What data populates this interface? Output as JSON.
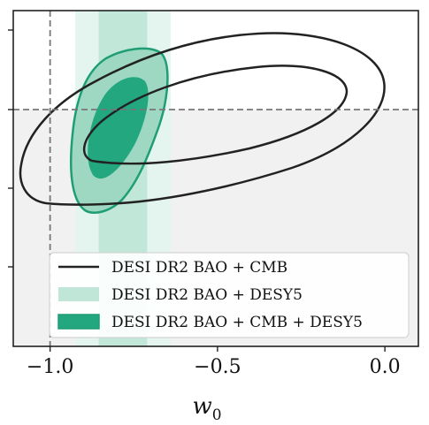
{
  "chart_data": {
    "type": "contour",
    "xlabel": "w",
    "xlabel_sub": "0",
    "ylabel": "",
    "xlim": [
      -1.11,
      0.1
    ],
    "x_ticks": [
      {
        "value": -1.0,
        "label": "−1.0"
      },
      {
        "value": -0.5,
        "label": "−0.5"
      },
      {
        "value": 0.0,
        "label": "0.0"
      }
    ],
    "y_tick_count": 4,
    "reference_lines": {
      "vertical_w0": -1.0,
      "horizontal": "wa = 0",
      "style": "dashed gray"
    },
    "shaded_region": "below horizontal reference line (light gray)",
    "legend": {
      "placement": "lower-right",
      "entries": [
        {
          "label": "DESI DR2 BAO + CMB",
          "style": "line",
          "color": "#222222"
        },
        {
          "label": "DESI DR2 BAO + DESY5",
          "style": "band",
          "color": "#9ddcc5"
        },
        {
          "label": "DESI DR2 BAO + CMB + DESY5",
          "style": "filled",
          "color": "#22a77f"
        }
      ]
    },
    "series": [
      {
        "name": "DESI DR2 BAO + CMB",
        "kind": "contour-lines",
        "color": "#222222",
        "levels": [
          "68%",
          "95%"
        ]
      },
      {
        "name": "DESI DR2 BAO + DESY5",
        "kind": "vertical-bands",
        "color": "#9ddcc5",
        "band_68": [
          -0.855,
          -0.71
        ],
        "band_95": [
          -0.925,
          -0.64
        ]
      },
      {
        "name": "DESI DR2 BAO + CMB + DESY5",
        "kind": "filled-contours",
        "color": "#22a77f",
        "levels": [
          "68%",
          "95%"
        ]
      }
    ]
  },
  "colors": {
    "axes": "#222222",
    "reference": "#777777",
    "shade": "#f1f1f1",
    "band_light": "#e3f4ee",
    "band_mid": "#bfe6d7",
    "green_inner": "#22a77f",
    "green_outer": "#9ed8c2",
    "green_edge": "#1f9e75",
    "cmb_line": "#222222"
  }
}
